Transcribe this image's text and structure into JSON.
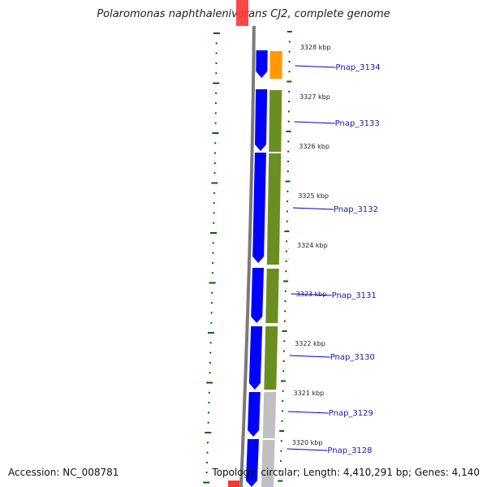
{
  "title": "Polaromonas naphthalenivorans CJ2, complete genome",
  "accession": "Accession: NC_008781",
  "summary": "Topology: circular; Length: 4,410,291 bp; Genes: 4,140",
  "colors": {
    "backbone": "#7a7a7a",
    "forward_gene": "#0000ff",
    "cog_orange": "#ff9900",
    "cog_olive": "#6b8e23",
    "cog_gray": "#c0c0c0",
    "tick_green": "#006400",
    "label_line": "#0000cc",
    "label_text": "#1a1aa8",
    "marker_red": "#ff3333"
  },
  "scale": {
    "unit": "kbp",
    "ticks": [
      "3328 kbp",
      "3327 kbp",
      "3326 kbp",
      "3325 kbp",
      "3324 kbp",
      "3323 kbp",
      "3322 kbp",
      "3321 kbp",
      "3320 kbp"
    ]
  },
  "genes": [
    {
      "name": "Pnap_3134",
      "category": "cog_orange"
    },
    {
      "name": "Pnap_3133",
      "category": "cog_olive"
    },
    {
      "name": "Pnap_3132",
      "category": "cog_olive"
    },
    {
      "name": "Pnap_3131",
      "category": "cog_olive"
    },
    {
      "name": "Pnap_3130",
      "category": "cog_olive"
    },
    {
      "name": "Pnap_3129",
      "category": "cog_gray"
    },
    {
      "name": "Pnap_3128",
      "category": "cog_gray"
    }
  ]
}
